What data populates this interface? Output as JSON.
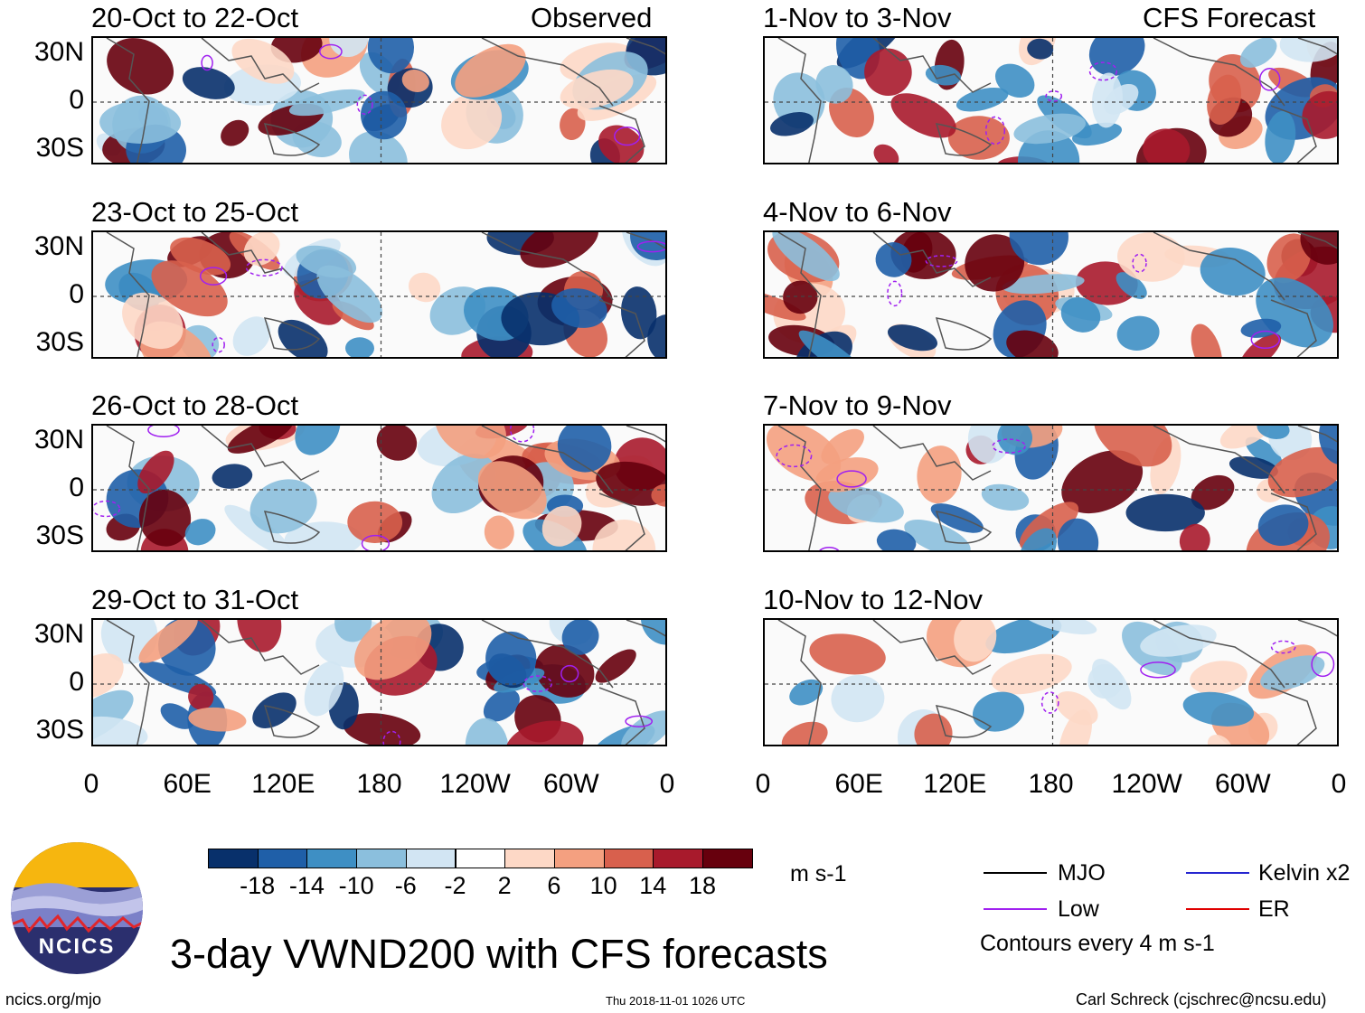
{
  "chart_data": {
    "type": "heatmap",
    "title": "3-day VWND200 with CFS forecasts",
    "variable": "VWND200",
    "units": "m s-1",
    "contour_interval_text": "Contours every 4 m s-1",
    "left_column_label": "Observed",
    "right_column_label": "CFS Forecast",
    "x_tick_labels": [
      "0",
      "60E",
      "120E",
      "180",
      "120W",
      "60W",
      "0"
    ],
    "y_tick_labels": [
      "30N",
      "0",
      "30S"
    ],
    "xlim_deg_east": [
      0,
      360
    ],
    "ylim_deg_north": [
      -40,
      40
    ],
    "panels_observed": [
      {
        "title": "20-Oct to 22-Oct"
      },
      {
        "title": "23-Oct to 25-Oct"
      },
      {
        "title": "26-Oct to 28-Oct"
      },
      {
        "title": "29-Oct to 31-Oct"
      }
    ],
    "panels_forecast": [
      {
        "title": "1-Nov to 3-Nov"
      },
      {
        "title": "4-Nov to 6-Nov"
      },
      {
        "title": "7-Nov to 9-Nov"
      },
      {
        "title": "10-Nov to 12-Nov"
      }
    ],
    "colorbar": {
      "levels": [
        "-18",
        "-14",
        "-10",
        "-6",
        "-2",
        "2",
        "6",
        "10",
        "14",
        "18"
      ],
      "colors": [
        "#08306b",
        "#1f5fa8",
        "#3e8fc4",
        "#8bbfdd",
        "#d2e5f3",
        "#ffffff",
        "#fdd8c6",
        "#f4a080",
        "#d8604d",
        "#a81a2c",
        "#67000d"
      ]
    },
    "legend": [
      {
        "label": "MJO",
        "color": "#000000"
      },
      {
        "label": "Kelvin x2",
        "color": "#2626d0"
      },
      {
        "label": "Low",
        "color": "#a020f0"
      },
      {
        "label": "ER",
        "color": "#e00000"
      }
    ]
  },
  "footer": {
    "logo_text": "NCICS",
    "website": "ncics.org/mjo",
    "timestamp": "Thu 2018-11-01 1026 UTC",
    "author": "Carl Schreck (cjschrec@ncsu.edu)"
  }
}
